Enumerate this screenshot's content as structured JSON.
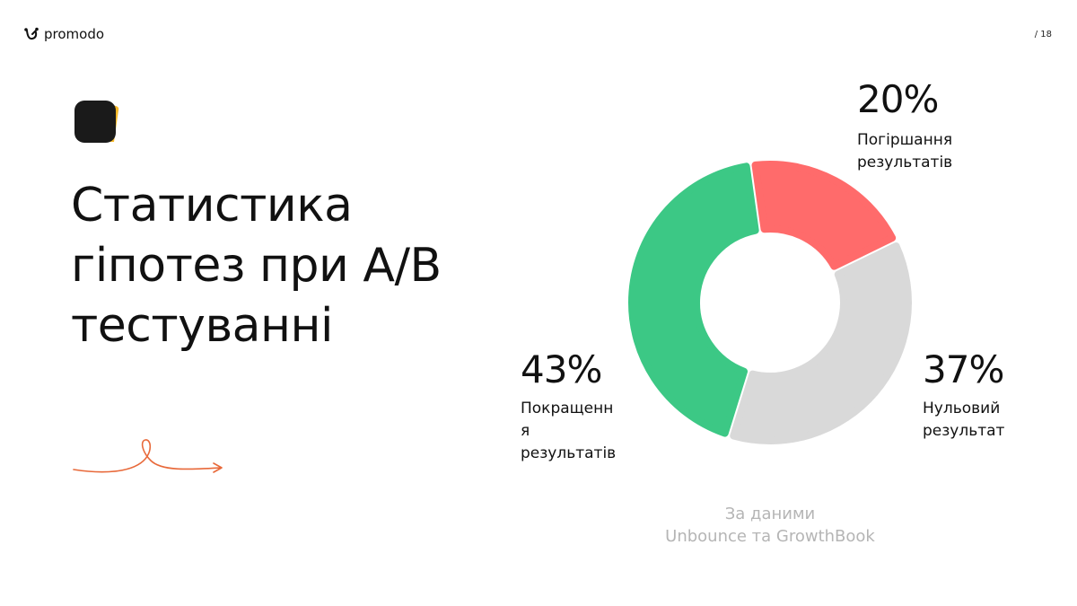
{
  "header": {
    "brand": "promodo",
    "page_number": "/ 18"
  },
  "slide": {
    "title_lines": [
      "Статистика",
      "гіпотез при A/B",
      "тестуванні"
    ]
  },
  "source_lines": [
    "За даними",
    "Unbounce та GrowthBook"
  ],
  "chart_data": {
    "type": "pie",
    "variant": "donut",
    "categories": [
      "Погіршання результатів",
      "Нульовий результат",
      "Покращення результатів"
    ],
    "values": [
      20,
      37,
      43
    ],
    "value_labels": [
      "20%",
      "37%",
      "43%"
    ],
    "label_lines": [
      [
        "Погіршання",
        "результатів"
      ],
      [
        "Нульовий",
        "результат"
      ],
      [
        "Покращенн",
        "я",
        "результатів"
      ]
    ],
    "colors": [
      "#FF6B6B",
      "#D9D9D9",
      "#3CC885"
    ],
    "legend": "none"
  }
}
